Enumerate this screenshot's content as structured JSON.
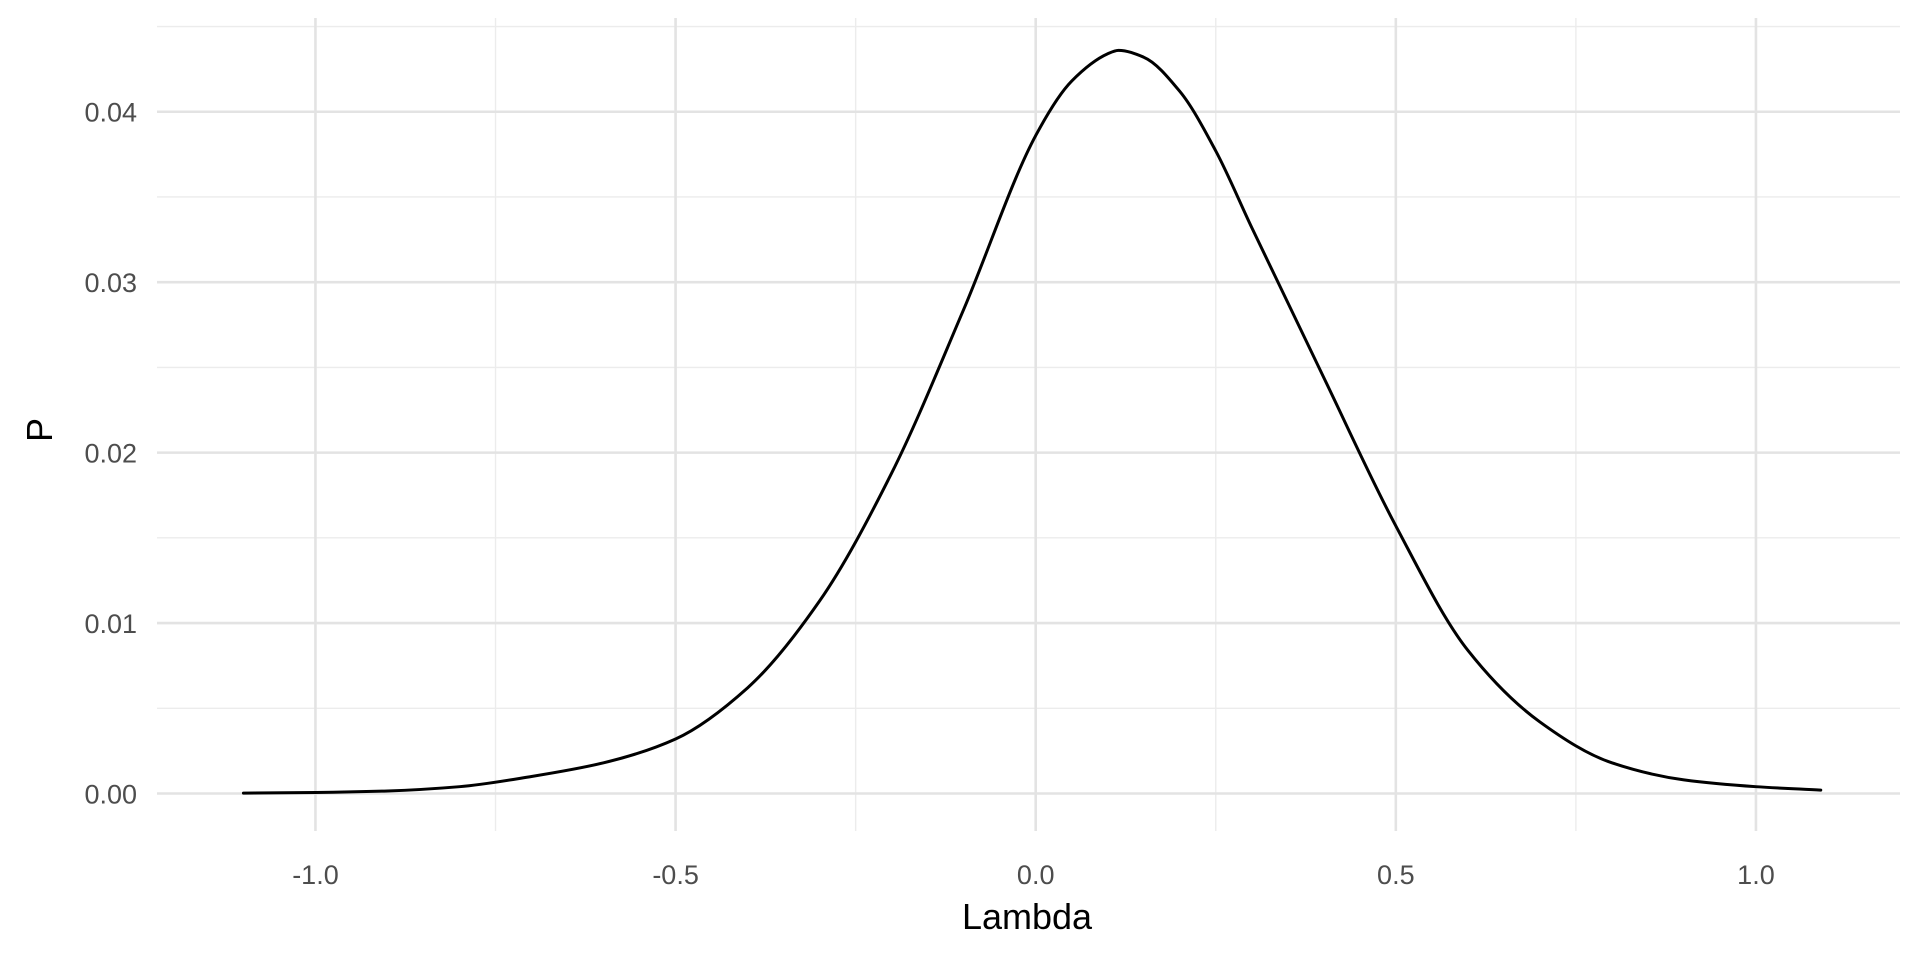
{
  "chart_data": {
    "type": "line",
    "title": "",
    "xlabel": "Lambda",
    "ylabel": "P",
    "xlim": [
      -1.22,
      1.2
    ],
    "ylim": [
      -0.0022,
      0.0455
    ],
    "x_ticks": [
      -1.0,
      -0.5,
      0.0,
      0.5,
      1.0
    ],
    "x_tick_labels": [
      "-1.0",
      "-0.5",
      "0.0",
      "0.5",
      "1.0"
    ],
    "y_ticks": [
      0.0,
      0.01,
      0.02,
      0.03,
      0.04
    ],
    "y_tick_labels": [
      "0.00",
      "0.01",
      "0.02",
      "0.03",
      "0.04"
    ],
    "grid": true,
    "legend": "none",
    "line_color": "#000000",
    "series": [
      {
        "x": [
          -1.1,
          -1.0,
          -0.9,
          -0.8,
          -0.7,
          -0.6,
          -0.5,
          -0.4,
          -0.3,
          -0.2,
          -0.1,
          0.0,
          0.05,
          0.1,
          0.115,
          0.15,
          0.2,
          0.25,
          0.3,
          0.4,
          0.5,
          0.6,
          0.7,
          0.8,
          0.9,
          1.0,
          1.09
        ],
        "y": [
          2e-05,
          6e-05,
          0.00015,
          0.0004,
          0.001,
          0.0018,
          0.0032,
          0.0062,
          0.0113,
          0.0188,
          0.0284,
          0.0386,
          0.0418,
          0.0434,
          0.0436,
          0.0432,
          0.0412,
          0.0377,
          0.0332,
          0.0244,
          0.0157,
          0.0084,
          0.0042,
          0.0018,
          0.0008,
          0.0004,
          0.0002
        ]
      }
    ]
  }
}
